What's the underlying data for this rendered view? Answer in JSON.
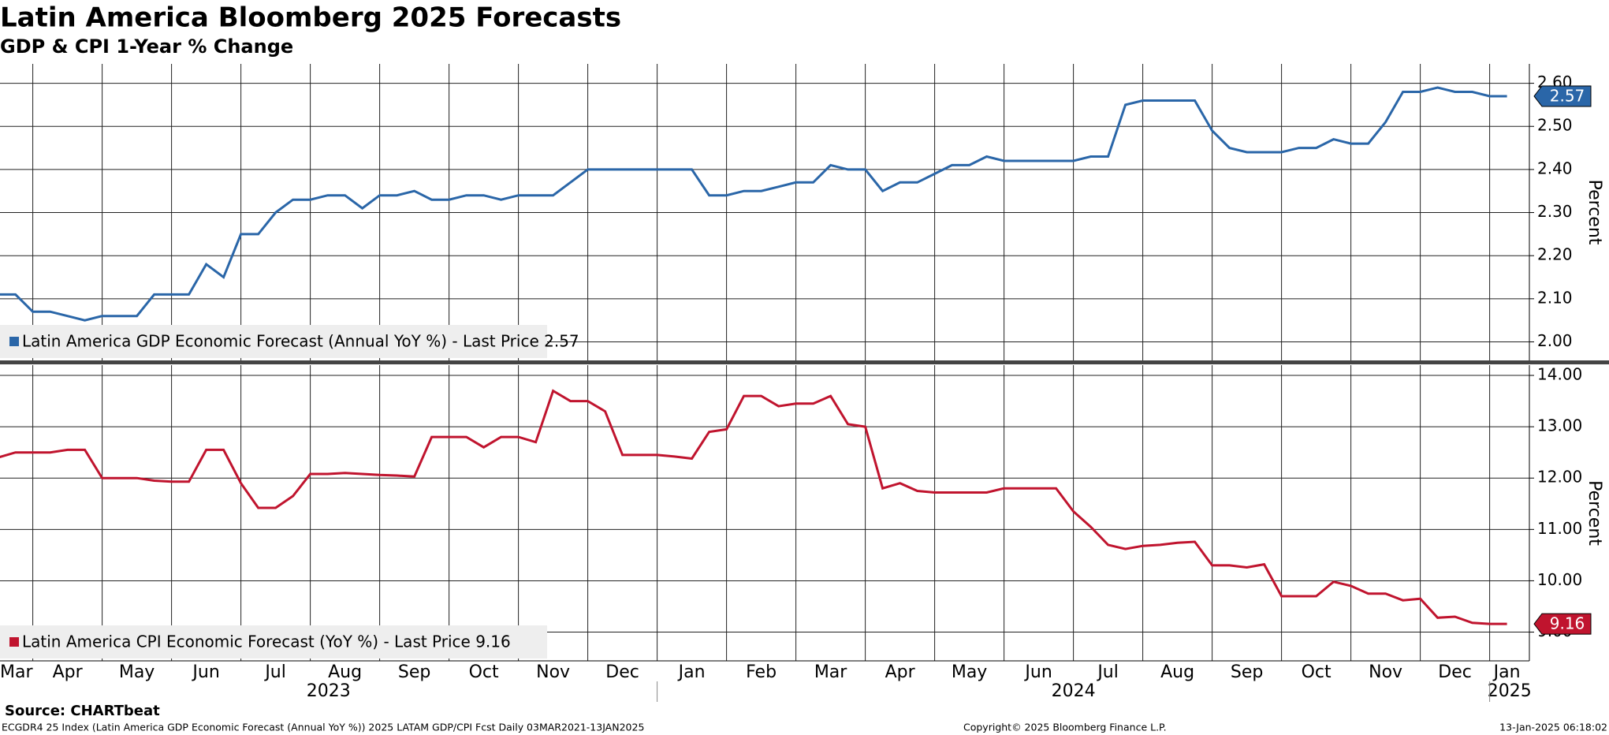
{
  "page": {
    "title": "Latin America Bloomberg 2025 Forecasts",
    "subtitle": "GDP & CPI 1-Year % Change",
    "source": "Source: CHARTbeat",
    "footer_left": "ECGDR4 25 Index (Latin America GDP Economic Forecast (Annual YoY %)) 2025 LATAM GDP/CPI Fcst  Daily 03MAR2021-13JAN2025",
    "footer_center": "Copyright© 2025 Bloomberg Finance L.P.",
    "footer_right": "13-Jan-2025 06:18:02"
  },
  "chart_data": [
    {
      "type": "line",
      "y_label": "Percent",
      "ylim": [
        1.957,
        2.645
      ],
      "yticks": [
        {
          "value": 2,
          "label": "2.00"
        },
        {
          "value": 2.1,
          "label": "2.10"
        },
        {
          "value": 2.2,
          "label": "2.20"
        },
        {
          "value": 2.3,
          "label": "2.30"
        },
        {
          "value": 2.4,
          "label": "2.40"
        },
        {
          "value": 2.5,
          "label": "2.50"
        },
        {
          "value": 2.6,
          "label": "2.60"
        }
      ],
      "grid": true,
      "legend": "bottom-left",
      "series": [
        {
          "name": "Latin America GDP Economic Forecast (Annual YoY %) - Last Price 2.57",
          "color": "#2a66a8",
          "values": [
            2.11,
            2.11,
            2.07,
            2.07,
            2.06,
            2.05,
            2.06,
            2.06,
            2.06,
            2.11,
            2.11,
            2.11,
            2.18,
            2.15,
            2.25,
            2.25,
            2.3,
            2.33,
            2.33,
            2.34,
            2.34,
            2.31,
            2.34,
            2.34,
            2.35,
            2.33,
            2.33,
            2.34,
            2.34,
            2.33,
            2.34,
            2.34,
            2.34,
            2.37,
            2.4,
            2.4,
            2.4,
            2.4,
            2.4,
            2.4,
            2.4,
            2.34,
            2.34,
            2.35,
            2.35,
            2.36,
            2.37,
            2.37,
            2.41,
            2.4,
            2.4,
            2.35,
            2.37,
            2.37,
            2.39,
            2.41,
            2.41,
            2.43,
            2.42,
            2.42,
            2.42,
            2.42,
            2.42,
            2.43,
            2.43,
            2.55,
            2.56,
            2.56,
            2.56,
            2.56,
            2.49,
            2.45,
            2.44,
            2.44,
            2.44,
            2.45,
            2.45,
            2.47,
            2.46,
            2.46,
            2.51,
            2.58,
            2.58,
            2.59,
            2.58,
            2.58,
            2.57,
            2.57
          ]
        }
      ]
    },
    {
      "type": "line",
      "y_label": "Percent",
      "ylim": [
        8.44,
        14.2
      ],
      "yticks": [
        {
          "value": 9,
          "label": "9.00"
        },
        {
          "value": 10,
          "label": "10.00"
        },
        {
          "value": 11,
          "label": "11.00"
        },
        {
          "value": 12,
          "label": "12.00"
        },
        {
          "value": 13,
          "label": "13.00"
        },
        {
          "value": 14,
          "label": "14.00"
        }
      ],
      "grid": true,
      "legend": "bottom-left",
      "categories": [
        "Mar",
        null,
        "Apr",
        null,
        null,
        null,
        "May",
        null,
        null,
        null,
        "Jun",
        null,
        null,
        null,
        "Jul",
        null,
        null,
        null,
        "Aug",
        null,
        null,
        null,
        "Sep",
        null,
        null,
        null,
        "Oct",
        null,
        null,
        null,
        "Nov",
        null,
        null,
        null,
        "Dec",
        null,
        null,
        null,
        "Jan",
        null,
        null,
        null,
        "Feb",
        null,
        null,
        null,
        "Mar",
        null,
        null,
        null,
        "Apr",
        null,
        null,
        null,
        "May",
        null,
        null,
        null,
        "Jun",
        null,
        null,
        null,
        "Jul",
        null,
        null,
        null,
        "Aug",
        null,
        null,
        null,
        "Sep",
        null,
        null,
        null,
        "Oct",
        null,
        null,
        null,
        "Nov",
        null,
        null,
        null,
        "Dec",
        null,
        null,
        null,
        "Jan",
        null
      ],
      "years": [
        "2023",
        "2024",
        "2025"
      ],
      "series": [
        {
          "name": "Latin America CPI Economic Forecast (YoY %) - Last Price 9.16",
          "color": "#c0142e",
          "values": [
            12.4,
            12.5,
            12.5,
            12.5,
            12.55,
            12.55,
            12.0,
            12.0,
            12.0,
            11.95,
            11.93,
            11.93,
            12.55,
            12.55,
            11.9,
            11.42,
            11.42,
            11.65,
            12.08,
            12.08,
            12.1,
            12.08,
            12.06,
            12.05,
            12.03,
            12.8,
            12.8,
            12.8,
            12.6,
            12.8,
            12.8,
            12.7,
            13.7,
            13.5,
            13.5,
            13.3,
            12.45,
            12.45,
            12.45,
            12.42,
            12.38,
            12.9,
            12.95,
            13.6,
            13.6,
            13.4,
            13.45,
            13.45,
            13.6,
            13.05,
            13.0,
            11.8,
            11.9,
            11.75,
            11.72,
            11.72,
            11.72,
            11.72,
            11.8,
            11.8,
            11.8,
            11.8,
            11.35,
            11.05,
            10.7,
            10.62,
            10.68,
            10.7,
            10.74,
            10.76,
            10.3,
            10.3,
            10.26,
            10.32,
            9.7,
            9.7,
            9.7,
            9.98,
            9.9,
            9.75,
            9.75,
            9.62,
            9.65,
            9.28,
            9.3,
            9.18,
            9.16,
            9.16
          ]
        }
      ]
    }
  ]
}
